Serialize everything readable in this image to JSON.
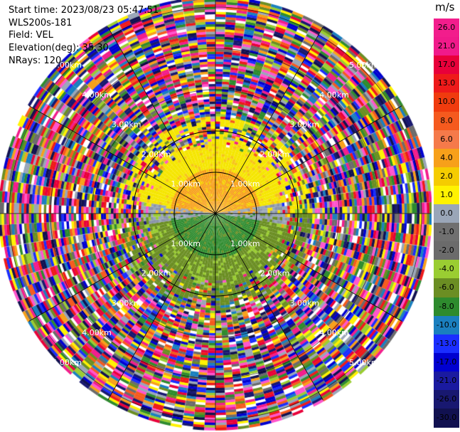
{
  "info": {
    "start_time": "Start time: 2023/08/23 05:47:51",
    "instrument": "WLS200s-181",
    "field": "Field: VEL",
    "elevation": "Elevation(deg): 35.30",
    "nrays": "NRays: 120"
  },
  "colorbar": {
    "unit": "m/s",
    "ticks": [
      "26.0",
      "21.0",
      "17.0",
      "13.0",
      "10.0",
      "8.0",
      "6.0",
      "4.0",
      "2.0",
      "1.0",
      "0.0",
      "-1.0",
      "-2.0",
      "-4.0",
      "-6.0",
      "-8.0",
      "-10.0",
      "-13.0",
      "-17.0",
      "-21.0",
      "-26.0",
      "-30.0"
    ],
    "colors": [
      "#f21d8c",
      "#f01a8a",
      "#e8003a",
      "#ee1a1a",
      "#f03b0e",
      "#f55a1e",
      "#f57a4a",
      "#f7a01a",
      "#f5cc00",
      "#fff200",
      "#9aa6b8",
      "#707070",
      "#6b6b6b",
      "#9acd32",
      "#6b8e23",
      "#2e8b2e",
      "#1a7fbf",
      "#1a2eff",
      "#0000d0",
      "#1a1aa0",
      "#181870",
      "#111150"
    ]
  },
  "ppi": {
    "ring_labels": [
      "1.00km",
      "2.00km",
      "3.00km",
      "4.00km",
      "5.00km"
    ],
    "noise_palette": [
      "#f21d8c",
      "#e8003a",
      "#ee1a1a",
      "#f55a1e",
      "#f7a01a",
      "#fff200",
      "#9aa6b8",
      "#6b6b6b",
      "#9acd32",
      "#6b8e23",
      "#2e8b2e",
      "#1a7fbf",
      "#1a2eff",
      "#0000d0",
      "#181870",
      "#111150",
      "#ff55cc",
      "#ffffff"
    ]
  }
}
